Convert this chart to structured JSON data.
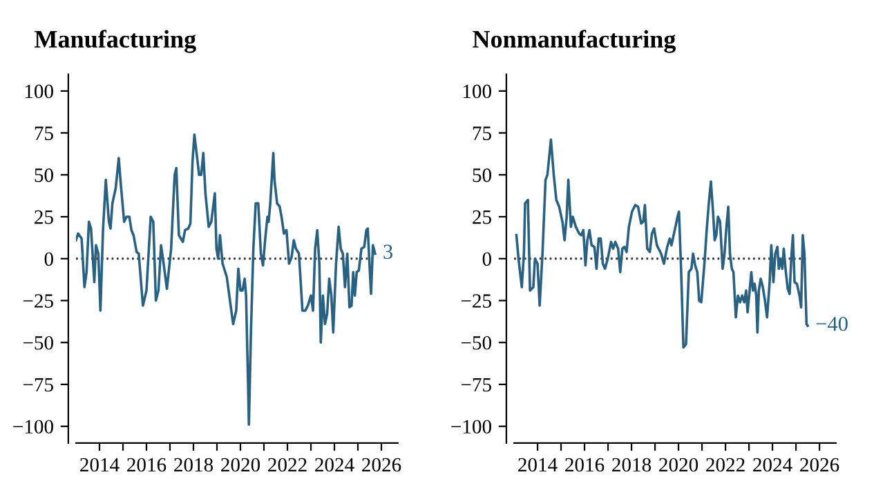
{
  "chart_data": [
    {
      "type": "line",
      "title": "Manufacturing",
      "color": "#2a6080",
      "line_style": "solid",
      "marker": "none",
      "grid": false,
      "legend": false,
      "x": [
        2013.0,
        2013.09,
        2013.24,
        2013.36,
        2013.45,
        2013.55,
        2013.64,
        2013.78,
        2013.85,
        2013.95,
        2014.04,
        2014.15,
        2014.27,
        2014.4,
        2014.47,
        2014.55,
        2014.69,
        2014.82,
        2014.91,
        2015.05,
        2015.15,
        2015.27,
        2015.36,
        2015.45,
        2015.58,
        2015.67,
        2015.85,
        2016.0,
        2016.18,
        2016.29,
        2016.4,
        2016.51,
        2016.62,
        2016.73,
        2016.87,
        2017.05,
        2017.2,
        2017.27,
        2017.38,
        2017.55,
        2017.64,
        2017.78,
        2017.87,
        2017.96,
        2018.04,
        2018.15,
        2018.24,
        2018.33,
        2018.42,
        2018.51,
        2018.65,
        2018.76,
        2018.91,
        2018.98,
        2019.05,
        2019.13,
        2019.24,
        2019.42,
        2019.69,
        2019.82,
        2019.91,
        2020.0,
        2020.09,
        2020.18,
        2020.24,
        2020.33,
        2020.36,
        2020.45,
        2020.55,
        2020.65,
        2020.76,
        2020.87,
        2020.96,
        2021.05,
        2021.15,
        2021.2,
        2021.27,
        2021.4,
        2021.45,
        2021.56,
        2021.67,
        2021.75,
        2021.85,
        2021.96,
        2022.07,
        2022.18,
        2022.27,
        2022.36,
        2022.49,
        2022.64,
        2022.76,
        2022.87,
        2023.0,
        2023.09,
        2023.18,
        2023.27,
        2023.36,
        2023.42,
        2023.51,
        2023.6,
        2023.69,
        2023.78,
        2023.87,
        2023.95,
        2024.07,
        2024.18,
        2024.27,
        2024.36,
        2024.45,
        2024.55,
        2024.64,
        2024.73,
        2024.8,
        2024.87,
        2024.95,
        2025.04,
        2025.15,
        2025.27,
        2025.36,
        2025.42,
        2025.51,
        2025.56,
        2025.64,
        2025.73
      ],
      "values": [
        11,
        15,
        12,
        -17,
        -8,
        22,
        18,
        -14,
        8,
        3,
        -31,
        17,
        47,
        22,
        18,
        33,
        42,
        60,
        44,
        22,
        25,
        25,
        17,
        14,
        4,
        3,
        -28,
        -19,
        25,
        22,
        -25,
        -19,
        8,
        -3,
        -18,
        6,
        50,
        54,
        14,
        10,
        17,
        18,
        21,
        58,
        74,
        61,
        50,
        50,
        63,
        39,
        19,
        22,
        39,
        6,
        0,
        14,
        -3,
        -11,
        -39,
        -31,
        -6,
        -19,
        -19,
        -12,
        -22,
        -78,
        -99,
        -42,
        6,
        33,
        33,
        3,
        -4,
        11,
        25,
        22,
        33,
        63,
        47,
        33,
        31,
        25,
        15,
        17,
        -3,
        1,
        11,
        6,
        3,
        -31,
        -31,
        -28,
        -22,
        -31,
        6,
        17,
        -3,
        -50,
        -22,
        -39,
        -33,
        -12,
        -22,
        -44,
        -3,
        19,
        6,
        3,
        -17,
        3,
        -29,
        -28,
        -8,
        -22,
        -8,
        -7,
        6,
        7,
        17,
        18,
        -8,
        -21,
        8,
        3
      ],
      "xlim": [
        2013.0,
        2026.7
      ],
      "ylim": [
        -110,
        110
      ],
      "xticks": [
        2014,
        {
          "value": 2015,
          "label": null
        },
        2016,
        {
          "value": 2017,
          "label": null
        },
        2018,
        {
          "value": 2019,
          "label": null
        },
        2020,
        {
          "value": 2021,
          "label": null
        },
        2022,
        {
          "value": 2023,
          "label": null
        },
        2024,
        {
          "value": 2025,
          "label": null
        },
        2026
      ],
      "yticks": [
        {
          "value": -100,
          "label": "−100"
        },
        {
          "value": -75,
          "label": "−75"
        },
        {
          "value": -50,
          "label": "−50"
        },
        {
          "value": -25,
          "label": "−25"
        },
        0,
        25,
        50,
        75,
        100
      ],
      "ref_lines": [
        {
          "axis": "y",
          "value": 0,
          "color": "#333333",
          "line_style": "dotted"
        }
      ],
      "annotations": [
        {
          "text": "3",
          "x": 2025.73,
          "y": 3
        }
      ]
    },
    {
      "type": "line",
      "title": "Nonmanufacturing",
      "color": "#2a6080",
      "line_style": "solid",
      "marker": "none",
      "grid": false,
      "legend": false,
      "x": [
        2013.1,
        2013.19,
        2013.33,
        2013.42,
        2013.47,
        2013.59,
        2013.68,
        2013.82,
        2013.89,
        2014.0,
        2014.09,
        2014.21,
        2014.34,
        2014.42,
        2014.57,
        2014.69,
        2014.8,
        2014.92,
        2015.06,
        2015.15,
        2015.24,
        2015.31,
        2015.42,
        2015.5,
        2015.63,
        2015.77,
        2015.86,
        2015.95,
        2016.04,
        2016.12,
        2016.21,
        2016.3,
        2016.42,
        2016.51,
        2016.6,
        2016.69,
        2016.78,
        2016.87,
        2016.99,
        2017.13,
        2017.22,
        2017.31,
        2017.43,
        2017.52,
        2017.61,
        2017.7,
        2017.79,
        2017.89,
        2018.02,
        2018.16,
        2018.28,
        2018.41,
        2018.5,
        2018.57,
        2018.67,
        2018.78,
        2018.87,
        2018.96,
        2019.08,
        2019.26,
        2019.38,
        2019.52,
        2019.63,
        2019.7,
        2019.84,
        2019.96,
        2020.02,
        2020.11,
        2020.21,
        2020.32,
        2020.44,
        2020.55,
        2020.62,
        2020.71,
        2020.8,
        2020.88,
        2020.97,
        2021.12,
        2021.2,
        2021.29,
        2021.38,
        2021.47,
        2021.54,
        2021.61,
        2021.68,
        2021.77,
        2021.88,
        2021.96,
        2022.04,
        2022.12,
        2022.19,
        2022.27,
        2022.34,
        2022.44,
        2022.53,
        2022.62,
        2022.71,
        2022.8,
        2022.88,
        2022.94,
        2023.01,
        2023.1,
        2023.17,
        2023.24,
        2023.31,
        2023.36,
        2023.42,
        2023.5,
        2023.59,
        2023.68,
        2023.77,
        2023.88,
        2023.95,
        2024.04,
        2024.12,
        2024.21,
        2024.27,
        2024.35,
        2024.42,
        2024.48,
        2024.57,
        2024.65,
        2024.73,
        2024.8,
        2024.87,
        2024.94,
        2025.04,
        2025.15,
        2025.22,
        2025.29,
        2025.36,
        2025.45,
        2025.5
      ],
      "values": [
        14,
        0,
        -17,
        3,
        33,
        35,
        -19,
        -17,
        0,
        -3,
        -28,
        3,
        47,
        50,
        71,
        50,
        35,
        31,
        22,
        11,
        25,
        47,
        19,
        25,
        19,
        15,
        14,
        17,
        -4,
        11,
        17,
        8,
        7,
        -6,
        12,
        12,
        -3,
        -6,
        0,
        10,
        6,
        10,
        6,
        -8,
        6,
        7,
        4,
        19,
        28,
        32,
        31,
        21,
        22,
        32,
        6,
        4,
        15,
        18,
        8,
        3,
        -3,
        7,
        12,
        8,
        17,
        25,
        28,
        -6,
        -53,
        -51,
        -8,
        -6,
        3,
        -4,
        -8,
        -25,
        -26,
        0,
        17,
        33,
        46,
        28,
        11,
        14,
        25,
        22,
        -6,
        3,
        19,
        31,
        3,
        -6,
        -8,
        -35,
        -22,
        -26,
        -22,
        -26,
        -19,
        -32,
        -22,
        -8,
        -19,
        -15,
        -22,
        -44,
        -19,
        -12,
        -17,
        -25,
        -35,
        -14,
        8,
        -14,
        3,
        7,
        -6,
        0,
        -6,
        6,
        -8,
        -18,
        -21,
        0,
        14,
        -14,
        -15,
        -22,
        -29,
        14,
        3,
        -39,
        -40
      ],
      "xlim": [
        2013.0,
        2026.7
      ],
      "ylim": [
        -110,
        110
      ],
      "xticks": [
        2014,
        {
          "value": 2015,
          "label": null
        },
        2016,
        {
          "value": 2017,
          "label": null
        },
        2018,
        {
          "value": 2019,
          "label": null
        },
        2020,
        {
          "value": 2021,
          "label": null
        },
        2022,
        {
          "value": 2023,
          "label": null
        },
        2024,
        {
          "value": 2025,
          "label": null
        },
        2026
      ],
      "yticks": [
        {
          "value": -100,
          "label": "−100"
        },
        {
          "value": -75,
          "label": "−75"
        },
        {
          "value": -50,
          "label": "−50"
        },
        {
          "value": -25,
          "label": "−25"
        },
        0,
        25,
        50,
        75,
        100
      ],
      "ref_lines": [
        {
          "axis": "y",
          "value": 0,
          "color": "#333333",
          "line_style": "dotted"
        }
      ],
      "annotations": [
        {
          "text": "−40",
          "x": 2025.5,
          "y": -40
        }
      ]
    }
  ]
}
